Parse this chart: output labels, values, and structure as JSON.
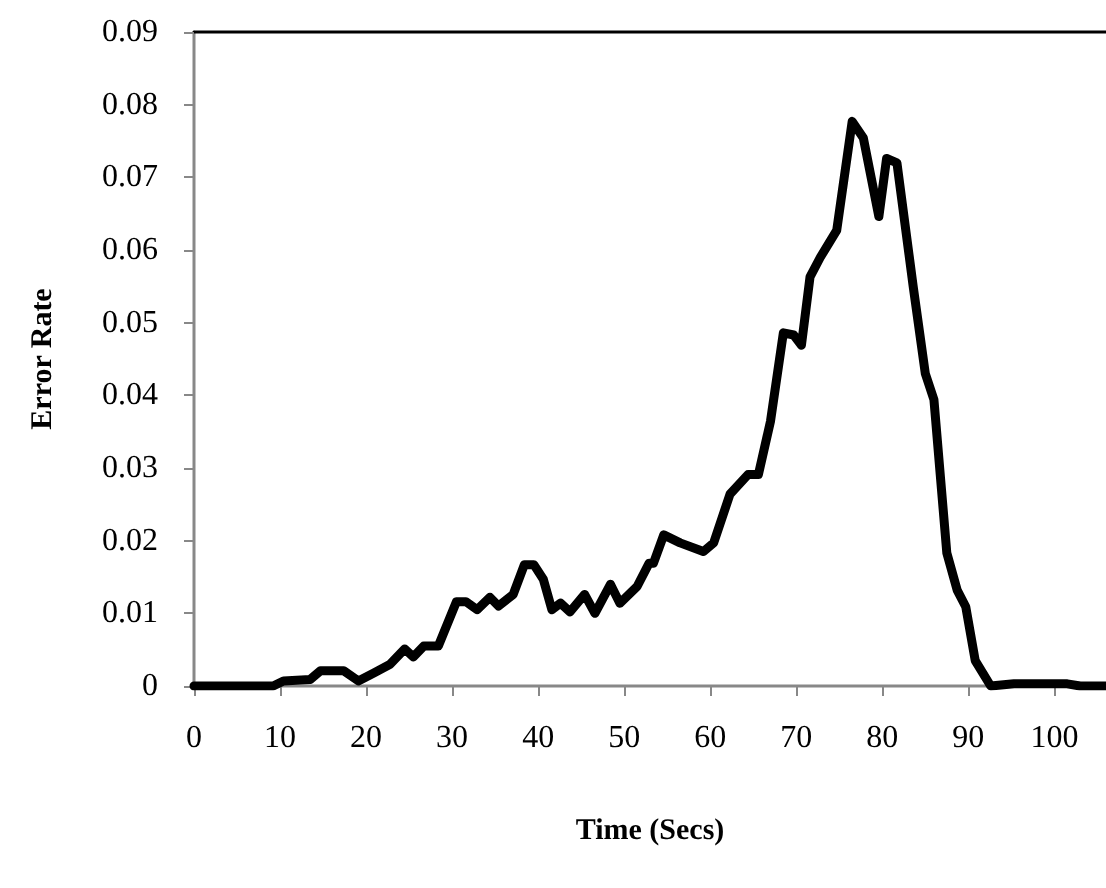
{
  "chart_data": {
    "type": "line",
    "xlabel": "Time (Secs)",
    "ylabel": "Error Rate",
    "x": [
      0,
      9.2,
      10.4,
      13.5,
      14.7,
      17.4,
      19.1,
      20.9,
      22.8,
      24.5,
      25.5,
      26.7,
      28.4,
      30.5,
      31.6,
      32.9,
      34.4,
      35.4,
      37.1,
      38.4,
      39.5,
      40.6,
      41.6,
      42.6,
      43.7,
      45.4,
      46.6,
      48.4,
      49.5,
      51.5,
      52.9,
      53.4,
      54.6,
      56.5,
      59.2,
      60.4,
      62.3,
      64.4,
      65.6,
      67.0,
      68.5,
      69.7,
      70.6,
      71.6,
      72.8,
      74.7,
      76.5,
      77.8,
      79.6,
      80.5,
      81.7,
      83.6,
      85.0,
      86.0,
      87.5,
      88.7,
      89.7,
      90.8,
      92.6,
      95.3,
      101.5,
      103,
      106
    ],
    "values": [
      0,
      0,
      0.0007,
      0.0009,
      0.0021,
      0.0021,
      0.0007,
      0.0018,
      0.003,
      0.0051,
      0.004,
      0.0055,
      0.0055,
      0.0116,
      0.0116,
      0.0105,
      0.0122,
      0.011,
      0.0126,
      0.0167,
      0.0167,
      0.0147,
      0.0105,
      0.0114,
      0.0102,
      0.0126,
      0.01,
      0.014,
      0.0114,
      0.0137,
      0.0169,
      0.0169,
      0.0208,
      0.0197,
      0.0185,
      0.0197,
      0.0264,
      0.0291,
      0.0291,
      0.0364,
      0.0486,
      0.0483,
      0.0469,
      0.0563,
      0.059,
      0.0627,
      0.0777,
      0.0754,
      0.0646,
      0.0726,
      0.072,
      0.0549,
      0.043,
      0.0394,
      0.0183,
      0.0132,
      0.0109,
      0.0035,
      0,
      0.0003,
      0.0003,
      0,
      0
    ],
    "color": "#000000",
    "marker": "none",
    "line_style": "solid",
    "xlim": [
      0,
      106
    ],
    "xticks": [
      0,
      10,
      20,
      30,
      40,
      50,
      60,
      70,
      80,
      90,
      100
    ],
    "ylim": [
      0,
      0.09
    ],
    "yticks": [
      0,
      0.01,
      0.02,
      0.03,
      0.04,
      0.05,
      0.06,
      0.07,
      0.08,
      0.09
    ]
  }
}
